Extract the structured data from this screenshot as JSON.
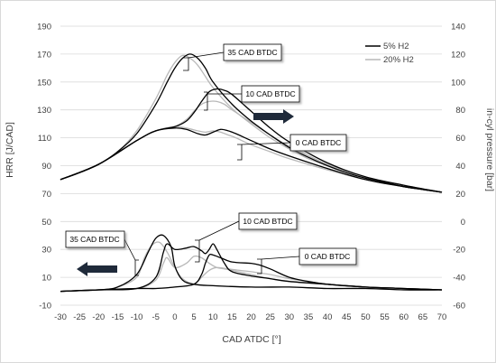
{
  "chart_data": {
    "type": "line",
    "xlabel": "CAD ATDC [°]",
    "ylabel_left": "HRR [J/CAD]",
    "ylabel_right": "in-cyl pressure [bar]",
    "xlim": [
      -30,
      70
    ],
    "ylim_left": [
      -10,
      190
    ],
    "ylim_right": [
      -60,
      140
    ],
    "x_ticks": [
      "-30",
      "-25",
      "-20",
      "-15",
      "-10",
      "-5",
      "0",
      "5",
      "10",
      "15",
      "20",
      "25",
      "30",
      "35",
      "40",
      "45",
      "50",
      "55",
      "60",
      "65",
      "70"
    ],
    "y_left_ticks": [
      "-10",
      "10",
      "30",
      "50",
      "70",
      "90",
      "110",
      "130",
      "150",
      "170",
      "190"
    ],
    "y_right_ticks": [
      "-60",
      "-40",
      "-20",
      "0",
      "20",
      "40",
      "60",
      "80",
      "100",
      "120",
      "140"
    ],
    "grid": "horizontal",
    "legend_position": "top-right",
    "legend": [
      {
        "name": "5% H2",
        "color": "#000000"
      },
      {
        "name": "20% H2",
        "color": "#b8b8b8"
      }
    ],
    "annotations": [
      {
        "text": "35 CAD BTDC"
      },
      {
        "text": "10 CAD BTDC"
      },
      {
        "text": "0 CAD BTDC"
      },
      {
        "text": "10 CAD BTDC"
      },
      {
        "text": "35 CAD BTDC"
      },
      {
        "text": "0 CAD BTDC"
      }
    ],
    "series": [
      {
        "name": "5% H2",
        "group": "pressure",
        "case": "35 CAD BTDC",
        "axis": "right",
        "x": [
          -30,
          -25,
          -20,
          -15,
          -10,
          -5,
          -2,
          0,
          2,
          4,
          6,
          8,
          10,
          15,
          20,
          25,
          30,
          35,
          40,
          45,
          50,
          55,
          60,
          65,
          70
        ],
        "y": [
          30,
          35,
          41,
          50,
          63,
          84,
          100,
          110,
          117,
          120,
          117,
          110,
          100,
          84,
          72,
          62,
          53,
          46,
          40,
          35,
          31,
          28,
          25,
          23,
          21
        ]
      },
      {
        "name": "20% H2",
        "group": "pressure",
        "case": "35 CAD BTDC",
        "axis": "right",
        "x": [
          -30,
          -25,
          -20,
          -15,
          -10,
          -5,
          -2,
          0,
          2,
          4,
          6,
          8,
          10,
          15,
          20,
          25,
          30,
          35,
          40,
          45,
          50,
          55,
          60,
          65,
          70
        ],
        "y": [
          30,
          35,
          41,
          50,
          65,
          88,
          105,
          114,
          119,
          117,
          112,
          104,
          96,
          81,
          70,
          60,
          52,
          45,
          40,
          35,
          31,
          28,
          25,
          23,
          21
        ]
      },
      {
        "name": "5% H2",
        "group": "pressure",
        "case": "10 CAD BTDC",
        "axis": "right",
        "x": [
          -30,
          -20,
          -10,
          -5,
          0,
          3,
          5,
          7,
          9,
          11,
          13,
          15,
          20,
          25,
          30,
          40,
          50,
          60,
          70
        ],
        "y": [
          30,
          41,
          58,
          65,
          68,
          72,
          78,
          86,
          93,
          95,
          94,
          91,
          79,
          67,
          57,
          42,
          32,
          26,
          21
        ]
      },
      {
        "name": "20% H2",
        "group": "pressure",
        "case": "10 CAD BTDC",
        "axis": "right",
        "x": [
          -30,
          -20,
          -10,
          -5,
          0,
          3,
          5,
          7,
          9,
          11,
          13,
          15,
          20,
          25,
          30,
          40,
          50,
          60,
          70
        ],
        "y": [
          30,
          41,
          58,
          65,
          68,
          73,
          79,
          84,
          86,
          86,
          84,
          80,
          71,
          62,
          54,
          41,
          32,
          26,
          21
        ]
      },
      {
        "name": "5% H2",
        "group": "pressure",
        "case": "0 CAD BTDC",
        "axis": "right",
        "x": [
          -30,
          -20,
          -10,
          -5,
          0,
          3,
          6,
          8,
          10,
          12,
          14,
          16,
          20,
          25,
          30,
          40,
          50,
          60,
          70
        ],
        "y": [
          30,
          41,
          58,
          65,
          67,
          66,
          63,
          62,
          64,
          66,
          65,
          63,
          58,
          52,
          47,
          38,
          30,
          25,
          21
        ]
      },
      {
        "name": "20% H2",
        "group": "pressure",
        "case": "0 CAD BTDC",
        "axis": "right",
        "x": [
          -30,
          -20,
          -10,
          -5,
          0,
          3,
          6,
          8,
          10,
          12,
          14,
          16,
          20,
          25,
          30,
          40,
          50,
          60,
          70
        ],
        "y": [
          30,
          41,
          58,
          65,
          68,
          67,
          65,
          64,
          65,
          64,
          62,
          60,
          55,
          50,
          45,
          37,
          30,
          25,
          21
        ]
      },
      {
        "name": "5% H2",
        "group": "hrr",
        "case": "35 CAD BTDC",
        "axis": "left",
        "x": [
          -30,
          -20,
          -15,
          -10,
          -7,
          -5,
          -3,
          -1,
          0,
          2,
          5,
          10,
          20,
          30,
          40,
          50,
          60,
          70
        ],
        "y": [
          0,
          1,
          3,
          12,
          28,
          38,
          40,
          32,
          18,
          8,
          5,
          4,
          3,
          3,
          2,
          2,
          1,
          1
        ]
      },
      {
        "name": "20% H2",
        "group": "hrr",
        "case": "35 CAD BTDC",
        "axis": "left",
        "x": [
          -30,
          -20,
          -15,
          -10,
          -8,
          -6,
          -4,
          -2,
          0,
          2,
          5,
          10,
          20,
          30,
          40,
          50,
          60,
          70
        ],
        "y": [
          0,
          1,
          3,
          10,
          24,
          33,
          35,
          28,
          17,
          9,
          5,
          4,
          3,
          3,
          2,
          2,
          1,
          1
        ]
      },
      {
        "name": "5% H2",
        "group": "hrr",
        "case": "10 CAD BTDC",
        "axis": "left",
        "x": [
          -30,
          -20,
          -10,
          -5,
          -3,
          -2,
          0,
          3,
          5,
          7,
          8,
          9,
          10,
          11,
          13,
          15,
          20,
          25,
          30,
          40,
          50,
          60,
          70
        ],
        "y": [
          0,
          1,
          2,
          10,
          28,
          34,
          30,
          31,
          32,
          29,
          27,
          30,
          34,
          30,
          20,
          14,
          11,
          9,
          7,
          5,
          3,
          2,
          1
        ]
      },
      {
        "name": "20% H2",
        "group": "hrr",
        "case": "10 CAD BTDC",
        "axis": "left",
        "x": [
          -30,
          -20,
          -10,
          -5,
          -3,
          -2,
          0,
          3,
          5,
          7,
          9,
          11,
          13,
          15,
          20,
          25,
          30,
          40,
          50,
          60,
          70
        ],
        "y": [
          0,
          1,
          2,
          8,
          20,
          24,
          17,
          20,
          25,
          24,
          20,
          17,
          16,
          15,
          12,
          9,
          7,
          5,
          3,
          2,
          1
        ]
      },
      {
        "name": "5% H2",
        "group": "hrr",
        "case": "0 CAD BTDC",
        "axis": "left",
        "x": [
          -30,
          -20,
          -10,
          -5,
          0,
          5,
          7,
          8,
          9,
          10,
          12,
          15,
          20,
          22,
          25,
          30,
          35,
          40,
          50,
          60,
          70
        ],
        "y": [
          0,
          1,
          2,
          2,
          3,
          5,
          12,
          20,
          26,
          26,
          24,
          21,
          20,
          19,
          16,
          10,
          7,
          5,
          3,
          2,
          1
        ]
      },
      {
        "name": "20% H2",
        "group": "hrr",
        "case": "0 CAD BTDC",
        "axis": "left",
        "x": [
          -30,
          -20,
          -10,
          -5,
          0,
          5,
          7,
          9,
          11,
          14,
          17,
          20,
          25,
          30,
          35,
          40,
          50,
          60,
          70
        ],
        "y": [
          0,
          1,
          2,
          2,
          3,
          5,
          10,
          15,
          17,
          16,
          15,
          14,
          12,
          9,
          7,
          5,
          3,
          2,
          1
        ]
      }
    ]
  }
}
